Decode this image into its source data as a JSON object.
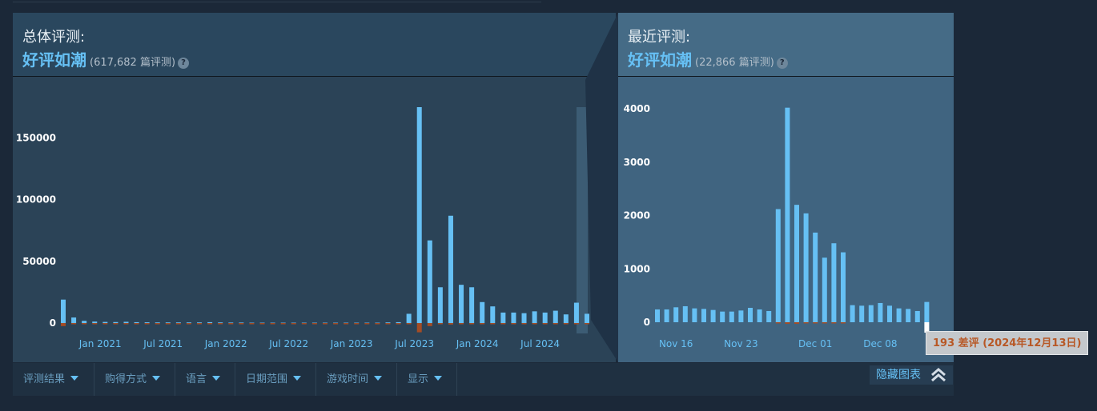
{
  "overall": {
    "title": "总体评测:",
    "summary": "好评如潮",
    "count": "(617,682 篇评测)",
    "help": "?"
  },
  "recent": {
    "title": "最近评测:",
    "summary": "好评如潮",
    "count": "(22,866 篇评测)",
    "help": "?"
  },
  "filters": [
    "评测结果",
    "购得方式",
    "语言",
    "日期范围",
    "游戏时间",
    "显示"
  ],
  "hide_chart_label": "隐藏图表",
  "tooltip": "193 差评 (2024年12月13日)",
  "colors": {
    "positive": "#66c0f4",
    "negative": "#a34c25",
    "panel_overall": "#2b4357",
    "panel_recent": "#406480",
    "page_bg": "#1b2838"
  },
  "chart_data": [
    {
      "type": "bar",
      "name": "overall",
      "yticks": [
        0,
        50000,
        100000,
        150000
      ],
      "ylim": [
        -3000,
        175000
      ],
      "xtick_labels": [
        "Jan 2021",
        "Jul 2021",
        "Jan 2022",
        "Jul 2022",
        "Jan 2023",
        "Jul 2023",
        "Jan 2024",
        "Jul 2024"
      ],
      "xtick_index": [
        3,
        9,
        15,
        21,
        27,
        33,
        39,
        45
      ],
      "positive": [
        19000,
        4500,
        1800,
        1200,
        900,
        800,
        1000,
        700,
        600,
        500,
        500,
        500,
        500,
        500,
        700,
        500,
        400,
        400,
        300,
        300,
        300,
        300,
        300,
        300,
        300,
        300,
        300,
        300,
        300,
        300,
        300,
        500,
        700,
        7500,
        175000,
        67000,
        29000,
        87000,
        31000,
        29000,
        17000,
        13500,
        8500,
        8500,
        8000,
        9500,
        8500,
        10000,
        7000,
        16500,
        7500
      ],
      "negative": [
        2500,
        500,
        200,
        150,
        100,
        100,
        100,
        100,
        100,
        50,
        50,
        50,
        50,
        50,
        100,
        50,
        50,
        50,
        50,
        50,
        50,
        50,
        50,
        50,
        50,
        50,
        50,
        50,
        50,
        50,
        50,
        100,
        200,
        400,
        7500,
        2500,
        700,
        1200,
        600,
        700,
        300,
        300,
        200,
        200,
        200,
        200,
        200,
        200,
        200,
        300,
        200
      ]
    },
    {
      "type": "bar",
      "name": "recent",
      "yticks": [
        0,
        1000,
        2000,
        3000,
        4000
      ],
      "ylim": [
        -200,
        4050
      ],
      "xtick_labels": [
        "Nov 16",
        "Nov 23",
        "Dec 01",
        "Dec 08"
      ],
      "xtick_index": [
        2,
        9,
        17,
        24
      ],
      "positive": [
        240,
        240,
        280,
        300,
        260,
        250,
        230,
        200,
        200,
        220,
        270,
        240,
        210,
        2120,
        4020,
        2200,
        2040,
        1680,
        1210,
        1480,
        1310,
        320,
        310,
        320,
        360,
        310,
        260,
        250,
        210,
        380
      ],
      "negative": [
        0,
        0,
        0,
        0,
        0,
        0,
        0,
        0,
        0,
        0,
        0,
        0,
        0,
        10,
        30,
        30,
        20,
        20,
        10,
        10,
        10,
        0,
        0,
        0,
        0,
        0,
        0,
        0,
        0,
        193
      ]
    }
  ]
}
